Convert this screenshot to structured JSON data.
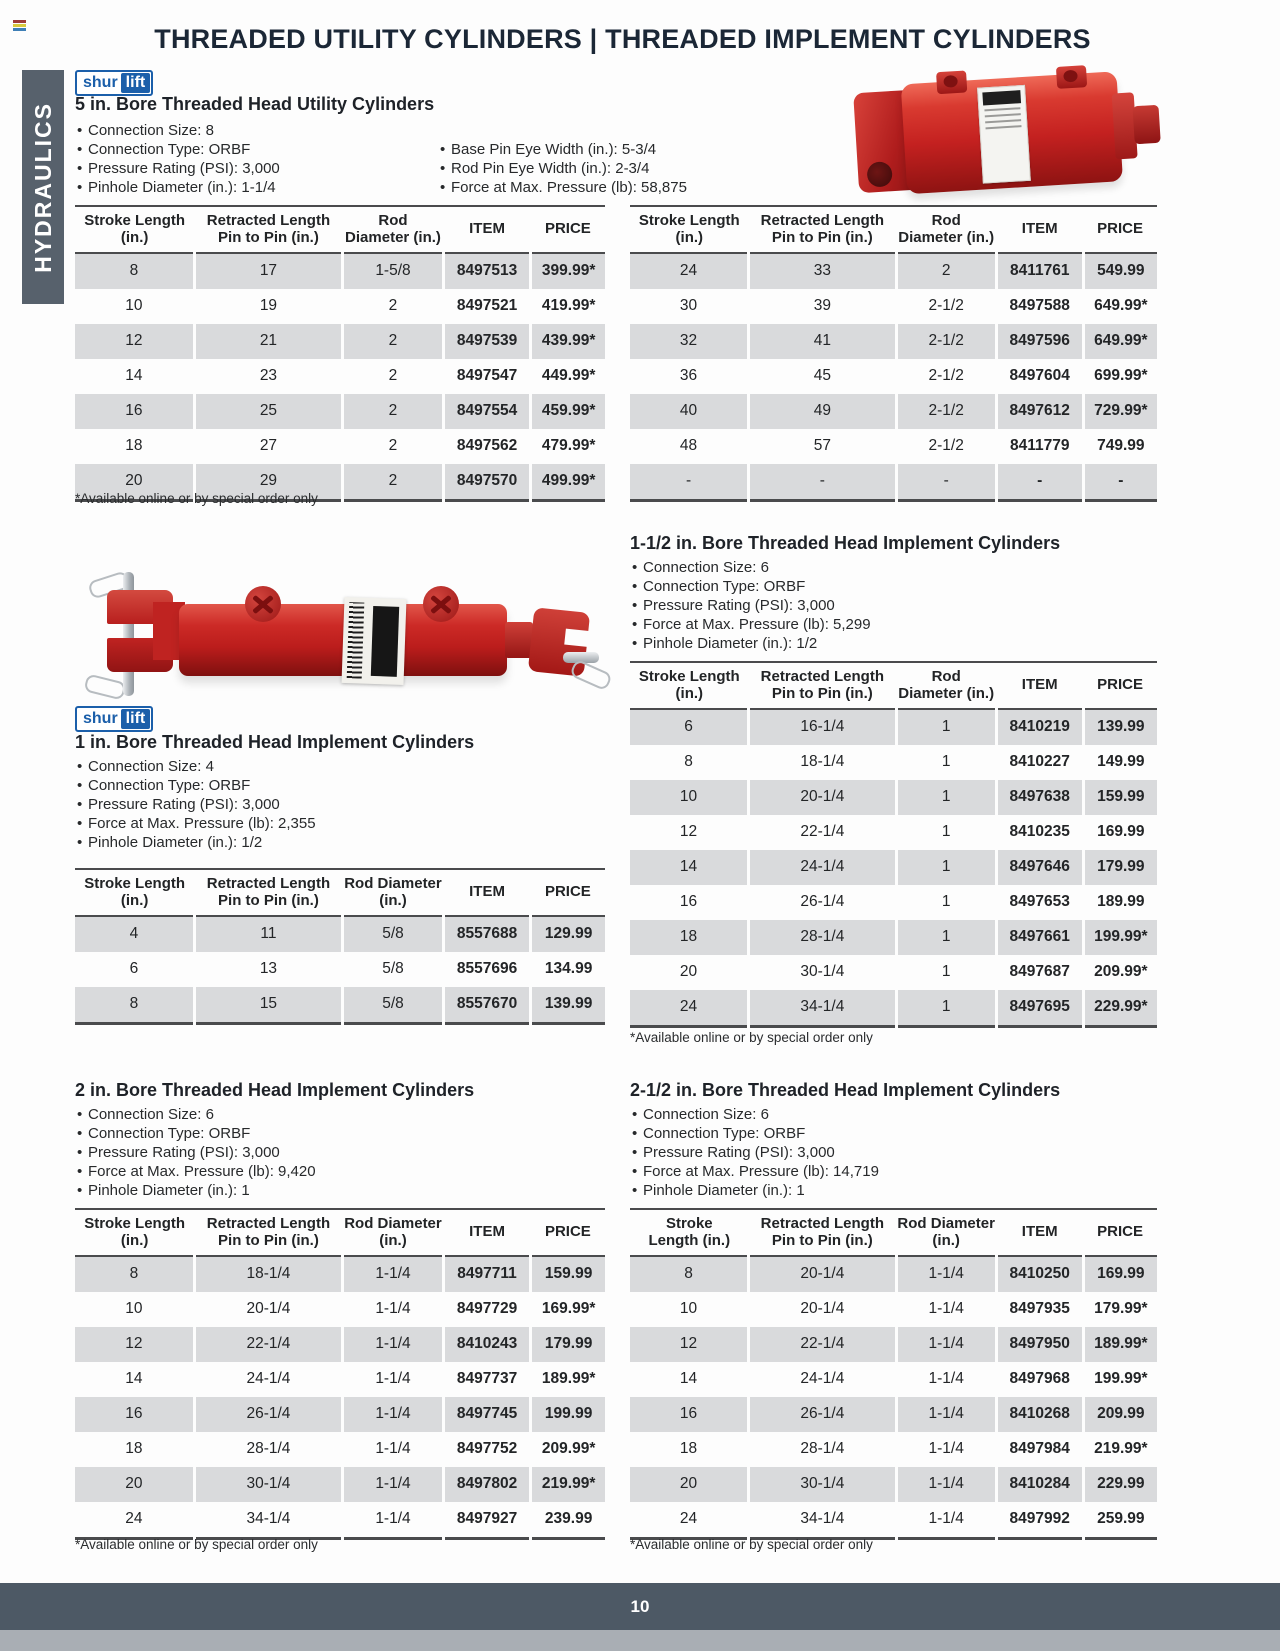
{
  "page": {
    "title": "THREADED UTILITY CYLINDERS | THREADED IMPLEMENT CYLINDERS",
    "sidebar_label": "HYDRAULICS",
    "page_number": "10",
    "footnote": "*Available online or by special order only",
    "colors": {
      "accent_blue": "#1b5faa",
      "slate": "#57616c",
      "footer_slate": "#4d5965",
      "table_stripe": "#d9dadc",
      "product_red": "#c42120"
    }
  },
  "brand": {
    "part1": "shur",
    "part2": "lift"
  },
  "sections": [
    {
      "heading": "5 in. Bore Threaded Head Utility Cylinders",
      "bullets_left": [
        "Connection Size: 8",
        "Connection Type: ORBF",
        "Pressure Rating (PSI): 3,000",
        "Pinhole Diameter (in.): 1-1/4"
      ],
      "bullets_right": [
        "Base Pin Eye Width (in.): 5-3/4",
        "Rod Pin Eye Width (in.): 2-3/4",
        "Force at Max. Pressure (lb): 58,875"
      ],
      "table_left": {
        "headers": [
          "Stroke Length\n(in.)",
          "Retracted Length\nPin to Pin (in.)",
          "Rod\nDiameter (in.)",
          "ITEM",
          "PRICE"
        ],
        "rows": [
          [
            "8",
            "17",
            "1-5/8",
            "8497513",
            "399.99*"
          ],
          [
            "10",
            "19",
            "2",
            "8497521",
            "419.99*"
          ],
          [
            "12",
            "21",
            "2",
            "8497539",
            "439.99*"
          ],
          [
            "14",
            "23",
            "2",
            "8497547",
            "449.99*"
          ],
          [
            "16",
            "25",
            "2",
            "8497554",
            "459.99*"
          ],
          [
            "18",
            "27",
            "2",
            "8497562",
            "479.99*"
          ],
          [
            "20",
            "29",
            "2",
            "8497570",
            "499.99*"
          ]
        ]
      },
      "table_right": {
        "headers": [
          "Stroke Length\n(in.)",
          "Retracted Length\nPin to Pin (in.)",
          "Rod\nDiameter (in.)",
          "ITEM",
          "PRICE"
        ],
        "rows": [
          [
            "24",
            "33",
            "2",
            "8411761",
            "549.99"
          ],
          [
            "30",
            "39",
            "2-1/2",
            "8497588",
            "649.99*"
          ],
          [
            "32",
            "41",
            "2-1/2",
            "8497596",
            "649.99*"
          ],
          [
            "36",
            "45",
            "2-1/2",
            "8497604",
            "699.99*"
          ],
          [
            "40",
            "49",
            "2-1/2",
            "8497612",
            "729.99*"
          ],
          [
            "48",
            "57",
            "2-1/2",
            "8411779",
            "749.99"
          ],
          [
            "-",
            "-",
            "-",
            "-",
            "-"
          ]
        ]
      }
    },
    {
      "heading": "1 in. Bore Threaded Head Implement Cylinders",
      "bullets": [
        "Connection Size: 4",
        "Connection Type: ORBF",
        "Pressure Rating (PSI): 3,000",
        "Force at Max. Pressure (lb): 2,355",
        "Pinhole Diameter (in.): 1/2"
      ],
      "table": {
        "headers": [
          "Stroke Length\n(in.)",
          "Retracted Length\nPin to Pin (in.)",
          "Rod Diameter\n(in.)",
          "ITEM",
          "PRICE"
        ],
        "rows": [
          [
            "4",
            "11",
            "5/8",
            "8557688",
            "129.99"
          ],
          [
            "6",
            "13",
            "5/8",
            "8557696",
            "134.99"
          ],
          [
            "8",
            "15",
            "5/8",
            "8557670",
            "139.99"
          ]
        ]
      }
    },
    {
      "heading": "1-1/2 in. Bore Threaded Head Implement Cylinders",
      "bullets": [
        "Connection Size: 6",
        "Connection Type: ORBF",
        "Pressure Rating (PSI): 3,000",
        "Force at Max. Pressure (lb): 5,299",
        "Pinhole Diameter (in.): 1/2"
      ],
      "table": {
        "headers": [
          "Stroke Length\n(in.)",
          "Retracted Length\nPin to Pin (in.)",
          "Rod\nDiameter (in.)",
          "ITEM",
          "PRICE"
        ],
        "rows": [
          [
            "6",
            "16-1/4",
            "1",
            "8410219",
            "139.99"
          ],
          [
            "8",
            "18-1/4",
            "1",
            "8410227",
            "149.99"
          ],
          [
            "10",
            "20-1/4",
            "1",
            "8497638",
            "159.99"
          ],
          [
            "12",
            "22-1/4",
            "1",
            "8410235",
            "169.99"
          ],
          [
            "14",
            "24-1/4",
            "1",
            "8497646",
            "179.99"
          ],
          [
            "16",
            "26-1/4",
            "1",
            "8497653",
            "189.99"
          ],
          [
            "18",
            "28-1/4",
            "1",
            "8497661",
            "199.99*"
          ],
          [
            "20",
            "30-1/4",
            "1",
            "8497687",
            "209.99*"
          ],
          [
            "24",
            "34-1/4",
            "1",
            "8497695",
            "229.99*"
          ]
        ]
      }
    },
    {
      "heading": "2 in. Bore Threaded Head Implement Cylinders",
      "bullets": [
        "Connection Size: 6",
        "Connection Type: ORBF",
        "Pressure Rating (PSI): 3,000",
        "Force at Max. Pressure (lb): 9,420",
        "Pinhole Diameter (in.): 1"
      ],
      "table": {
        "headers": [
          "Stroke Length\n(in.)",
          "Retracted Length\nPin to Pin (in.)",
          "Rod Diameter\n(in.)",
          "ITEM",
          "PRICE"
        ],
        "rows": [
          [
            "8",
            "18-1/4",
            "1-1/4",
            "8497711",
            "159.99"
          ],
          [
            "10",
            "20-1/4",
            "1-1/4",
            "8497729",
            "169.99*"
          ],
          [
            "12",
            "22-1/4",
            "1-1/4",
            "8410243",
            "179.99"
          ],
          [
            "14",
            "24-1/4",
            "1-1/4",
            "8497737",
            "189.99*"
          ],
          [
            "16",
            "26-1/4",
            "1-1/4",
            "8497745",
            "199.99"
          ],
          [
            "18",
            "28-1/4",
            "1-1/4",
            "8497752",
            "209.99*"
          ],
          [
            "20",
            "30-1/4",
            "1-1/4",
            "8497802",
            "219.99*"
          ],
          [
            "24",
            "34-1/4",
            "1-1/4",
            "8497927",
            "239.99"
          ]
        ]
      }
    },
    {
      "heading": "2-1/2 in. Bore Threaded Head Implement Cylinders",
      "bullets": [
        "Connection Size: 6",
        "Connection Type: ORBF",
        "Pressure Rating (PSI): 3,000",
        "Force at Max. Pressure (lb): 14,719",
        "Pinhole Diameter (in.): 1"
      ],
      "table": {
        "headers": [
          "Stroke\nLength (in.)",
          "Retracted Length\nPin to Pin (in.)",
          "Rod Diameter\n(in.)",
          "ITEM",
          "PRICE"
        ],
        "rows": [
          [
            "8",
            "20-1/4",
            "1-1/4",
            "8410250",
            "169.99"
          ],
          [
            "10",
            "20-1/4",
            "1-1/4",
            "8497935",
            "179.99*"
          ],
          [
            "12",
            "22-1/4",
            "1-1/4",
            "8497950",
            "189.99*"
          ],
          [
            "14",
            "24-1/4",
            "1-1/4",
            "8497968",
            "199.99*"
          ],
          [
            "16",
            "26-1/4",
            "1-1/4",
            "8410268",
            "209.99"
          ],
          [
            "18",
            "28-1/4",
            "1-1/4",
            "8497984",
            "219.99*"
          ],
          [
            "20",
            "30-1/4",
            "1-1/4",
            "8410284",
            "229.99"
          ],
          [
            "24",
            "34-1/4",
            "1-1/4",
            "8497992",
            "259.99"
          ]
        ]
      }
    }
  ]
}
